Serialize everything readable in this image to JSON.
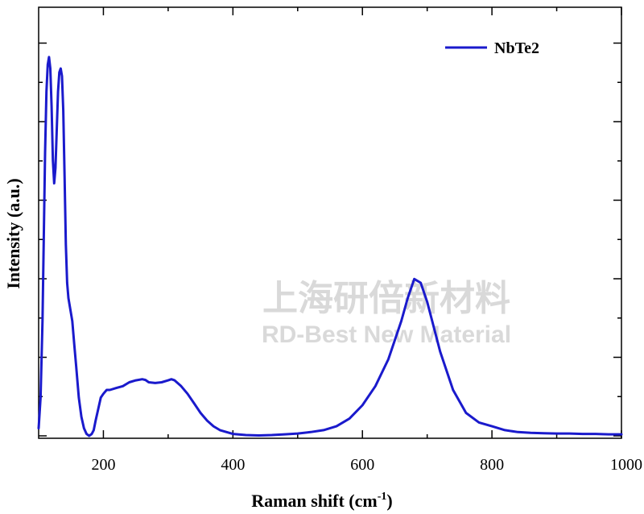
{
  "chart_data": {
    "type": "line",
    "xlabel": "Raman shift (cm",
    "xlabel_sup": "-1",
    "xlabel_close": ")",
    "ylabel": "Intensity (a.u.)",
    "xlim": [
      100,
      1000
    ],
    "ylim": [
      0,
      1
    ],
    "x_ticks": [
      200,
      400,
      600,
      800,
      1000
    ],
    "y_tick_labels_shown": false,
    "legend": "top-right",
    "grid": false,
    "series": [
      {
        "name": "NbTe2",
        "color": "#1a1acc",
        "x": [
          100,
          103,
          106,
          108,
          110,
          112,
          114,
          116,
          118,
          120,
          122,
          124,
          126,
          128,
          130,
          132,
          134,
          136,
          138,
          140,
          142,
          144,
          146,
          148,
          150,
          152,
          155,
          158,
          162,
          166,
          170,
          174,
          178,
          182,
          185,
          188,
          192,
          196,
          200,
          205,
          210,
          220,
          230,
          240,
          250,
          260,
          265,
          270,
          280,
          290,
          300,
          305,
          310,
          320,
          330,
          340,
          350,
          360,
          370,
          380,
          400,
          420,
          440,
          460,
          480,
          500,
          520,
          540,
          560,
          580,
          600,
          620,
          640,
          660,
          670,
          680,
          690,
          700,
          720,
          740,
          760,
          780,
          800,
          820,
          840,
          860,
          880,
          900,
          920,
          940,
          960,
          980,
          1000
        ],
        "y": [
          0.02,
          0.1,
          0.3,
          0.52,
          0.74,
          0.9,
          0.97,
          0.99,
          0.96,
          0.86,
          0.72,
          0.66,
          0.7,
          0.8,
          0.9,
          0.95,
          0.96,
          0.94,
          0.85,
          0.68,
          0.5,
          0.4,
          0.36,
          0.34,
          0.32,
          0.3,
          0.24,
          0.18,
          0.1,
          0.05,
          0.02,
          0.005,
          0.0,
          0.005,
          0.015,
          0.04,
          0.07,
          0.1,
          0.11,
          0.12,
          0.12,
          0.125,
          0.13,
          0.14,
          0.145,
          0.148,
          0.146,
          0.14,
          0.138,
          0.14,
          0.145,
          0.148,
          0.145,
          0.13,
          0.11,
          0.085,
          0.06,
          0.04,
          0.025,
          0.015,
          0.005,
          0.002,
          0.001,
          0.002,
          0.004,
          0.006,
          0.01,
          0.015,
          0.025,
          0.045,
          0.08,
          0.13,
          0.2,
          0.3,
          0.36,
          0.41,
          0.4,
          0.35,
          0.22,
          0.12,
          0.06,
          0.035,
          0.025,
          0.015,
          0.01,
          0.008,
          0.007,
          0.006,
          0.006,
          0.005,
          0.005,
          0.004,
          0.004
        ]
      }
    ]
  },
  "watermark": {
    "line1": "上海研倍新材料",
    "line2": "RD-Best New Material"
  }
}
